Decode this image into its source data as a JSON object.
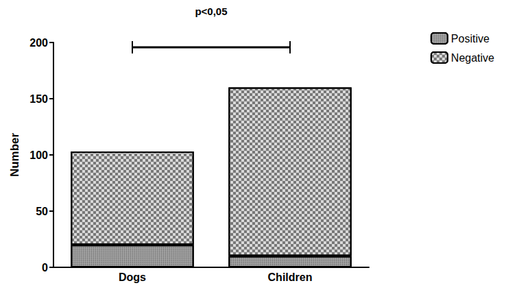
{
  "chart_data": {
    "type": "bar",
    "stacked": true,
    "annotation": "p<0,05",
    "y_label": "Number",
    "categories": [
      "Dogs",
      "Children"
    ],
    "series": [
      {
        "name": "Positive",
        "color": "#a6a6a6",
        "values": [
          20,
          10
        ]
      },
      {
        "name": "Negative",
        "color": "#d9d9d9",
        "values": [
          83,
          150
        ]
      }
    ],
    "ylim": [
      0,
      200
    ],
    "yticks": [
      0,
      50,
      100,
      150,
      200
    ],
    "grid": false,
    "legend": "upper right"
  }
}
